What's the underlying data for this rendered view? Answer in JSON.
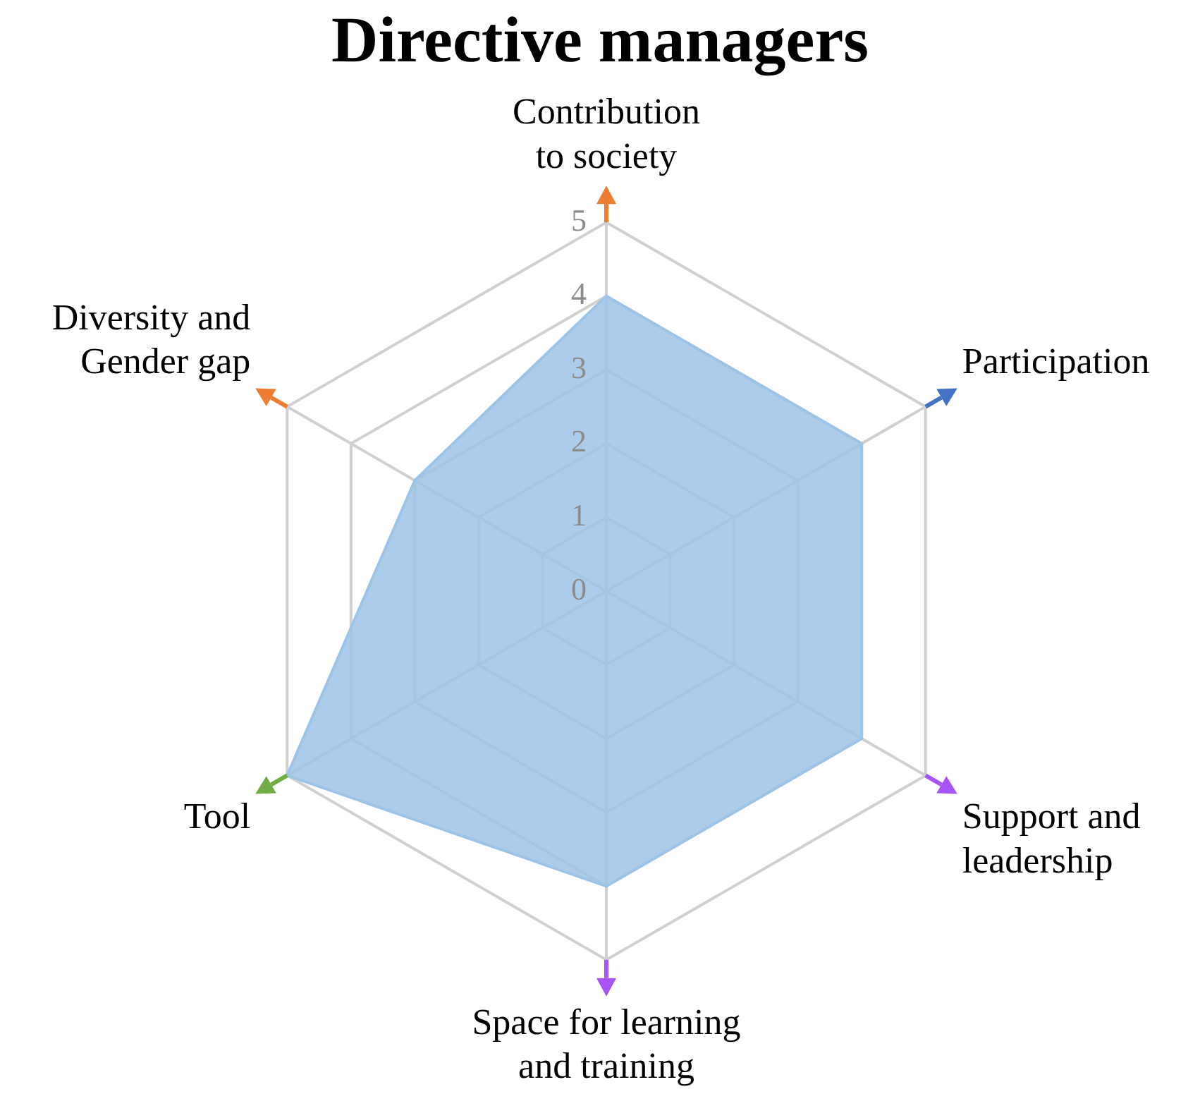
{
  "chart_data": {
    "type": "radar",
    "title": "Directive managers",
    "categories": [
      "Contribution to society",
      "Participation",
      "Support and leadership",
      "Space for learning and training",
      "Tool",
      "Diversity and Gender gap"
    ],
    "series": [
      {
        "color": "#9dc3e6",
        "values": [
          4,
          4,
          4,
          4,
          5,
          3
        ]
      }
    ],
    "ylim": [
      0,
      5
    ],
    "yticks": [
      0,
      1,
      2,
      3,
      4,
      5
    ],
    "grid": true,
    "legend": false,
    "marker": "none"
  }
}
